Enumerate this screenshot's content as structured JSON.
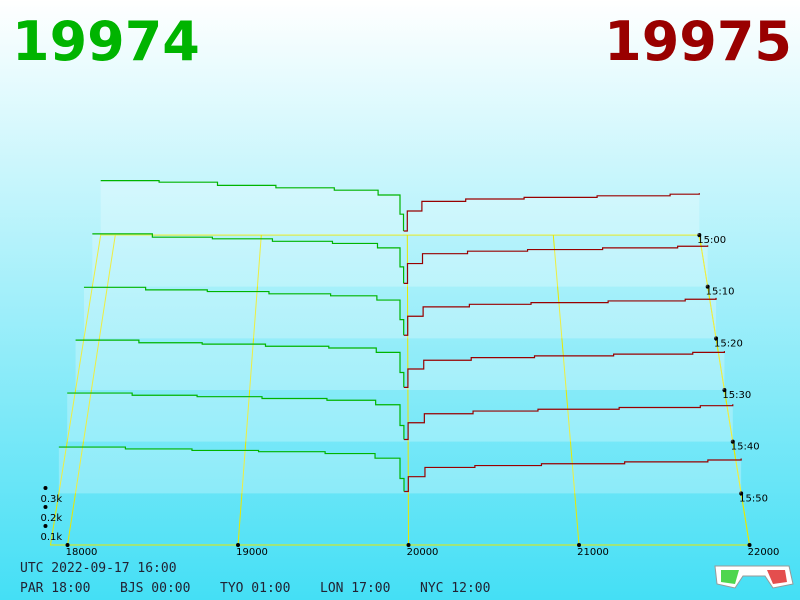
{
  "chart_data": {
    "type": "depth3d",
    "bid_price": "19974",
    "ask_price": "19975",
    "bid_color": "#00b400",
    "ask_color": "#990000",
    "grid_color": "#e8e800",
    "xlim": [
      17900,
      22000
    ],
    "xticks": [
      18000,
      19000,
      20000,
      21000,
      22000
    ],
    "vlim": [
      0,
      400
    ],
    "vticks": [
      {
        "value": 100,
        "label": "0.1k"
      },
      {
        "value": 200,
        "label": "0.2k"
      },
      {
        "value": 300,
        "label": "0.3k"
      }
    ],
    "times": [
      "15:00",
      "15:10",
      "15:20",
      "15:30",
      "15:40",
      "15:50"
    ],
    "bid_prices": [
      17900,
      18300,
      18700,
      19100,
      19500,
      19800,
      19950,
      19974
    ],
    "ask_prices": [
      19975,
      20000,
      20100,
      20400,
      20800,
      21300,
      21800,
      22000
    ],
    "series": [
      {
        "bids": [
          340,
          330,
          310,
          295,
          280,
          250,
          130,
          25
        ],
        "asks": [
          25,
          150,
          210,
          225,
          235,
          245,
          255,
          262
        ]
      },
      {
        "bids": [
          320,
          300,
          290,
          275,
          262,
          235,
          120,
          20
        ],
        "asks": [
          20,
          140,
          200,
          215,
          225,
          235,
          245,
          250
        ]
      },
      {
        "bids": [
          300,
          285,
          275,
          262,
          250,
          225,
          110,
          18
        ],
        "asks": [
          18,
          130,
          185,
          200,
          210,
          220,
          230,
          238
        ]
      },
      {
        "bids": [
          285,
          270,
          262,
          250,
          240,
          215,
          100,
          15
        ],
        "asks": [
          15,
          120,
          170,
          185,
          195,
          205,
          215,
          222
        ]
      },
      {
        "bids": [
          270,
          258,
          250,
          240,
          230,
          205,
          90,
          12
        ],
        "asks": [
          12,
          105,
          155,
          170,
          180,
          190,
          200,
          208
        ]
      },
      {
        "bids": [
          250,
          240,
          232,
          225,
          215,
          190,
          80,
          10
        ],
        "asks": [
          10,
          90,
          140,
          150,
          160,
          170,
          180,
          188
        ]
      }
    ]
  },
  "footer": {
    "utc": "UTC 2022-09-17 16:00",
    "zones": [
      "PAR 18:00",
      "BJS 00:00",
      "TYO 01:00",
      "LON 17:00",
      "NYC 12:00"
    ]
  }
}
